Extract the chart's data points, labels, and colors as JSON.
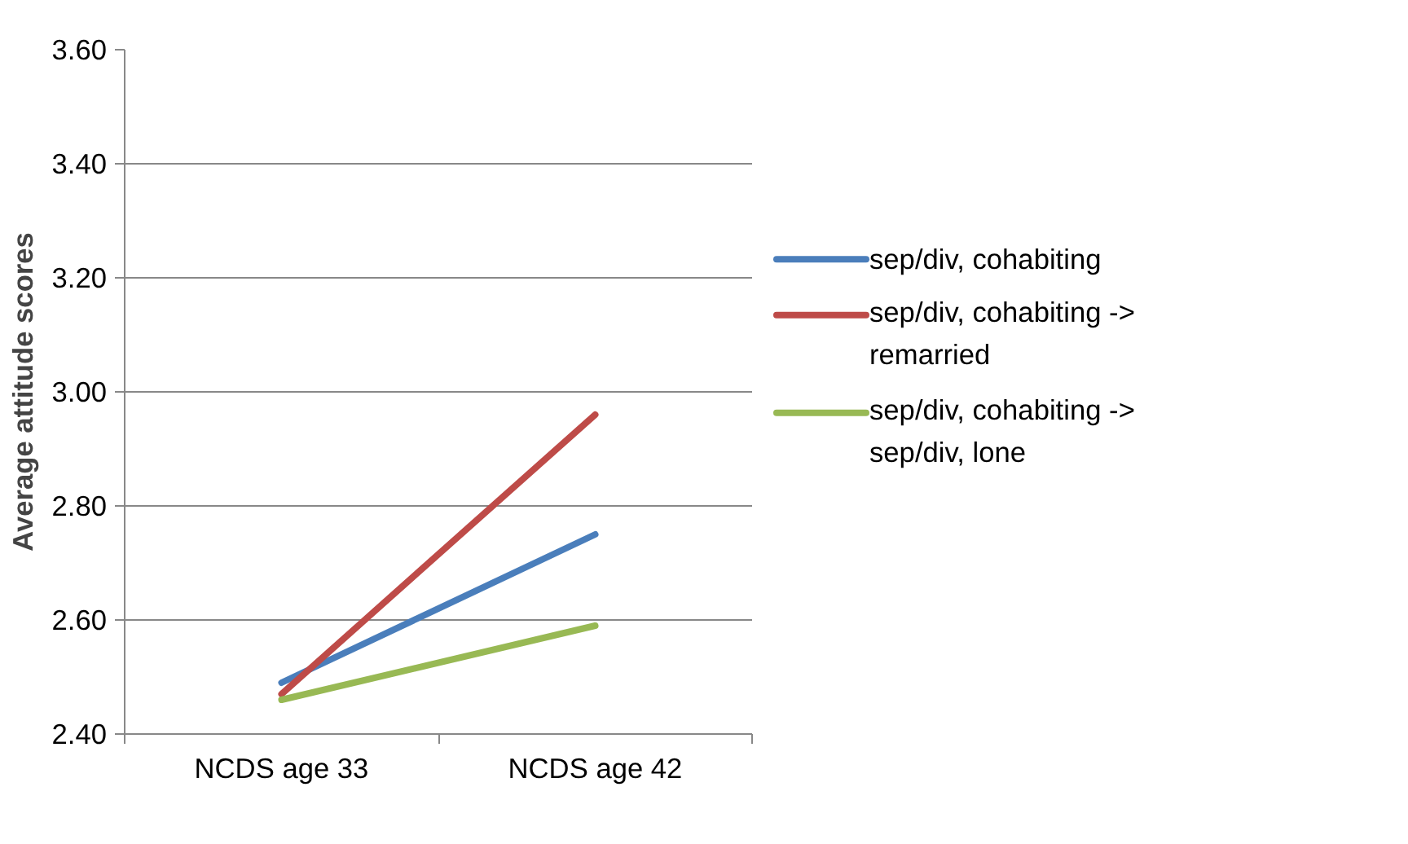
{
  "chart_data": {
    "type": "line",
    "ylabel": "Average attitude scores",
    "categories": [
      "NCDS age 33",
      "NCDS age 42"
    ],
    "series": [
      {
        "name": "sep/div, cohabiting",
        "color": "#4a7ebb",
        "values": [
          2.49,
          2.75
        ]
      },
      {
        "name": "sep/div, cohabiting -> remarried",
        "color": "#be4b48",
        "values": [
          2.47,
          2.96
        ]
      },
      {
        "name": "sep/div, cohabiting -> sep/div, lone",
        "color": "#98b954",
        "values": [
          2.46,
          2.59
        ]
      }
    ],
    "ylim": [
      2.4,
      3.6
    ],
    "yticks": [
      {
        "value": 2.4,
        "label": "2.40"
      },
      {
        "value": 2.6,
        "label": "2.60"
      },
      {
        "value": 2.8,
        "label": "2.80"
      },
      {
        "value": 3.0,
        "label": "3.00"
      },
      {
        "value": 3.2,
        "label": "3.20"
      },
      {
        "value": 3.4,
        "label": "3.40"
      },
      {
        "value": 3.6,
        "label": "3.60"
      }
    ],
    "grid": "y",
    "legend": "right",
    "marker": "none",
    "line_style": "solid"
  }
}
